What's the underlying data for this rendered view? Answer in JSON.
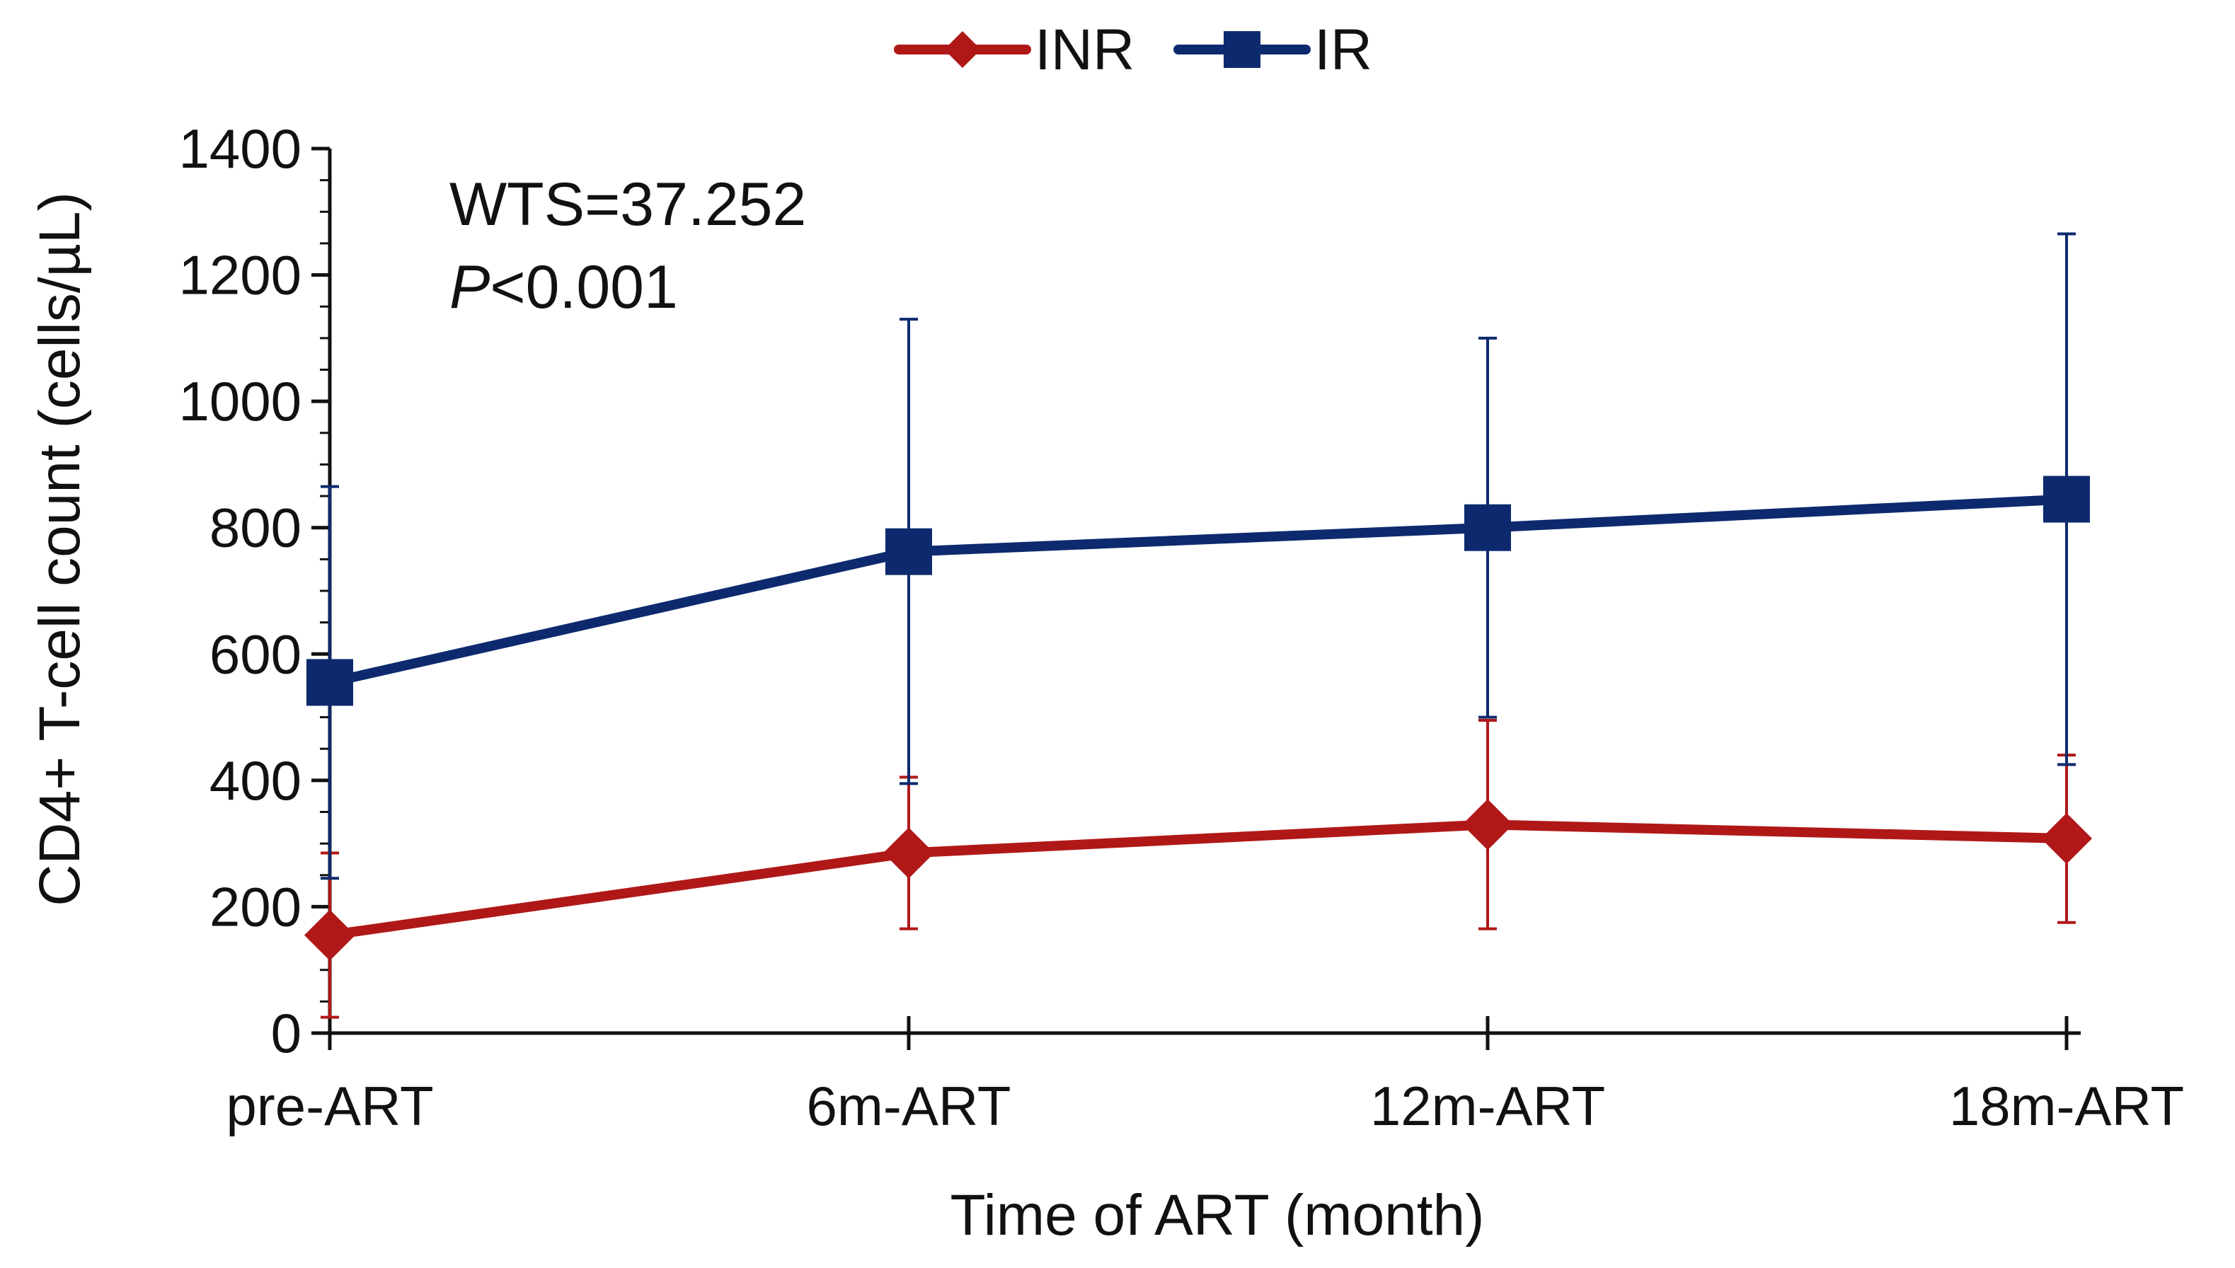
{
  "chart_data": {
    "type": "line",
    "title": "",
    "xlabel": "Time of ART (month)",
    "ylabel": "CD4+ T-cell count (cells/µL)",
    "categories": [
      "pre-ART",
      "6m-ART",
      "12m-ART",
      "18m-ART"
    ],
    "ylim": [
      0,
      1400
    ],
    "yticks": [
      0,
      200,
      400,
      600,
      800,
      1000,
      1200,
      1400
    ],
    "legend_position": "top-center",
    "grid": false,
    "annotation": {
      "stat_label": "WTS=37.252",
      "p_symbol": "P",
      "p_value": "<0.001"
    },
    "series": [
      {
        "name": "INR",
        "color": "#b01818",
        "marker": "diamond",
        "values": [
          155,
          285,
          330,
          308
        ],
        "error_upper": [
          285,
          405,
          495,
          440
        ],
        "error_lower": [
          25,
          165,
          165,
          175
        ]
      },
      {
        "name": "IR",
        "color": "#0d2a6e",
        "marker": "square",
        "values": [
          555,
          762,
          800,
          845
        ],
        "error_upper": [
          865,
          1130,
          1100,
          1265
        ],
        "error_lower": [
          245,
          395,
          500,
          425
        ]
      }
    ]
  }
}
